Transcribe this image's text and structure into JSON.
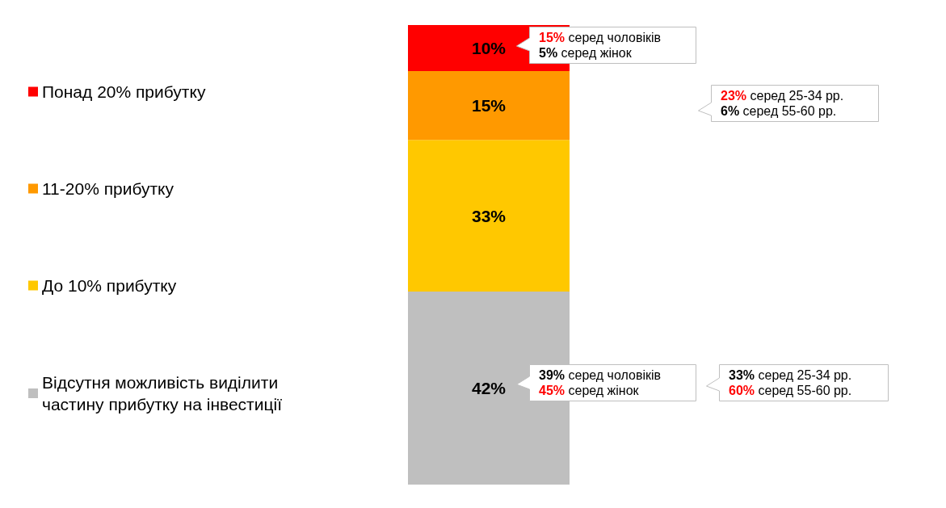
{
  "chart_data": {
    "type": "bar",
    "stacked": true,
    "categories": [
      null
    ],
    "series": [
      {
        "name": "Відсутня можливість виділити частину прибутку на інвестиції",
        "color": "#bfbfbf",
        "values": [
          42
        ],
        "value_labels": [
          "42%"
        ]
      },
      {
        "name": "До 10% прибутку",
        "color": "#ffc800",
        "values": [
          33
        ],
        "value_labels": [
          "33%"
        ]
      },
      {
        "name": "11-20% прибутку",
        "color": "#ff9900",
        "values": [
          15
        ],
        "value_labels": [
          "15%"
        ]
      },
      {
        "name": "Понад 20% прибутку",
        "color": "#ff0000",
        "values": [
          10
        ],
        "value_labels": [
          "10%"
        ]
      }
    ],
    "legend": "left",
    "tick_labels": false,
    "annotations": [
      "15% серед чоловіків\n5% серед жінок",
      "23% серед 25-34 рр.\n6% серед 55-60 рр.",
      "39% серед чоловіків\n45% серед жінок",
      "33% серед 25-34 рр.\n60% серед 55-60 рр."
    ]
  }
}
